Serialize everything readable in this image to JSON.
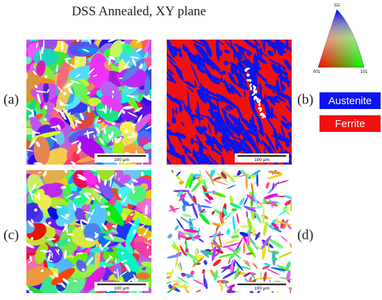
{
  "title": "DSS Annealed, XY plane",
  "panels": [
    {
      "label": "(a)",
      "scale_bar": "100 μm"
    },
    {
      "label": "(b)",
      "scale_bar": "100 μm"
    },
    {
      "label": "(c)",
      "scale_bar": "100 μm"
    },
    {
      "label": "(d)",
      "scale_bar": "100 μm"
    }
  ],
  "ipf_key": {
    "labels": [
      "111",
      "001",
      "101"
    ]
  },
  "legend": [
    {
      "name": "Austenite",
      "color": "#0a14f0"
    },
    {
      "name": "Ferrite",
      "color": "#f01010"
    }
  ]
}
